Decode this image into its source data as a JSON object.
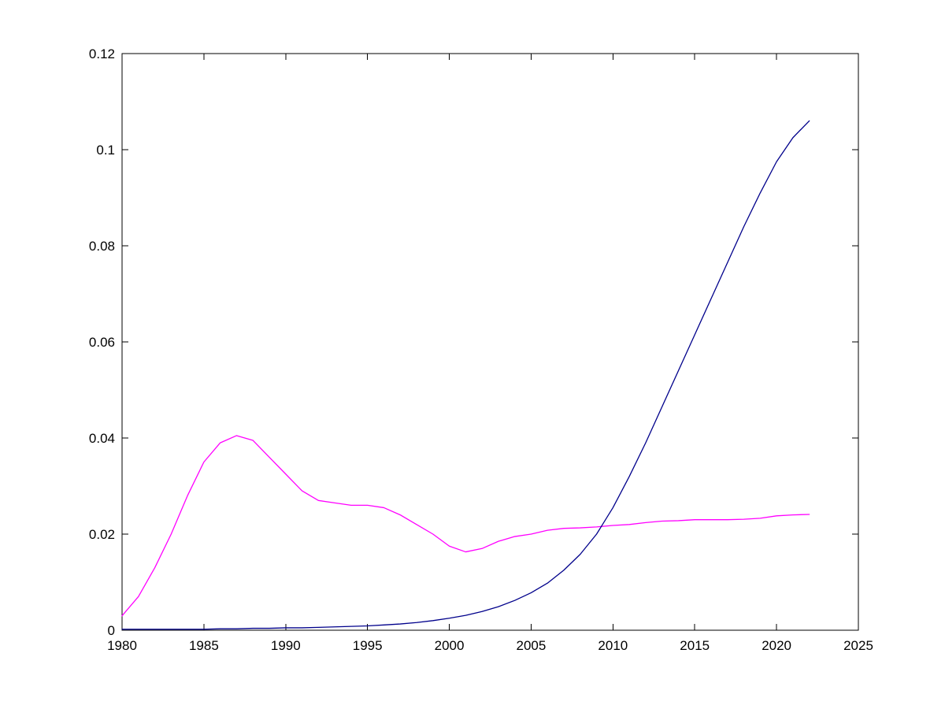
{
  "figure": {
    "background": "#ffffff",
    "axis_color": "#000000"
  },
  "chart_data": {
    "type": "line",
    "title": "",
    "xlabel": "",
    "ylabel": "",
    "grid": false,
    "legend": "none",
    "xlim": [
      1980,
      2025
    ],
    "ylim": [
      0,
      0.12
    ],
    "xticks": [
      1980,
      1985,
      1990,
      1995,
      2000,
      2005,
      2010,
      2015,
      2020,
      2025
    ],
    "xtick_labels": [
      "1980",
      "1985",
      "1990",
      "1995",
      "2000",
      "2005",
      "2010",
      "2015",
      "2020",
      "2025"
    ],
    "yticks": [
      0,
      0.02,
      0.04,
      0.06,
      0.08,
      0.1,
      0.12
    ],
    "ytick_labels": [
      "0",
      "0.02",
      "0.04",
      "0.06",
      "0.08",
      "0.1",
      "0.12"
    ],
    "x": [
      1980,
      1981,
      1982,
      1983,
      1984,
      1985,
      1986,
      1987,
      1988,
      1989,
      1990,
      1991,
      1992,
      1993,
      1994,
      1995,
      1996,
      1997,
      1998,
      1999,
      2000,
      2001,
      2002,
      2003,
      2004,
      2005,
      2006,
      2007,
      2008,
      2009,
      2010,
      2011,
      2012,
      2013,
      2014,
      2015,
      2016,
      2017,
      2018,
      2019,
      2020,
      2021,
      2022
    ],
    "series": [
      {
        "name": "magenta-line",
        "color": "#FF00FF",
        "values": [
          0.003,
          0.007,
          0.013,
          0.02,
          0.028,
          0.035,
          0.039,
          0.0405,
          0.0395,
          0.036,
          0.0325,
          0.029,
          0.027,
          0.0265,
          0.026,
          0.026,
          0.0255,
          0.024,
          0.022,
          0.02,
          0.0175,
          0.0163,
          0.017,
          0.0185,
          0.0195,
          0.02,
          0.0208,
          0.0212,
          0.0213,
          0.0215,
          0.0218,
          0.022,
          0.0224,
          0.0227,
          0.0228,
          0.023,
          0.023,
          0.023,
          0.0231,
          0.0233,
          0.0238,
          0.024,
          0.0241
        ]
      },
      {
        "name": "dark-blue-line",
        "color": "#00008B",
        "values": [
          0.0002,
          0.0002,
          0.0002,
          0.0002,
          0.0002,
          0.0002,
          0.0003,
          0.0003,
          0.0004,
          0.0004,
          0.0005,
          0.0005,
          0.0006,
          0.0007,
          0.0008,
          0.0009,
          0.0011,
          0.0013,
          0.0016,
          0.002,
          0.0025,
          0.0031,
          0.0039,
          0.0049,
          0.0062,
          0.0078,
          0.0098,
          0.0125,
          0.0158,
          0.02,
          0.0255,
          0.032,
          0.039,
          0.0465,
          0.054,
          0.0615,
          0.069,
          0.0765,
          0.084,
          0.091,
          0.0975,
          0.1025,
          0.106
        ]
      }
    ]
  }
}
